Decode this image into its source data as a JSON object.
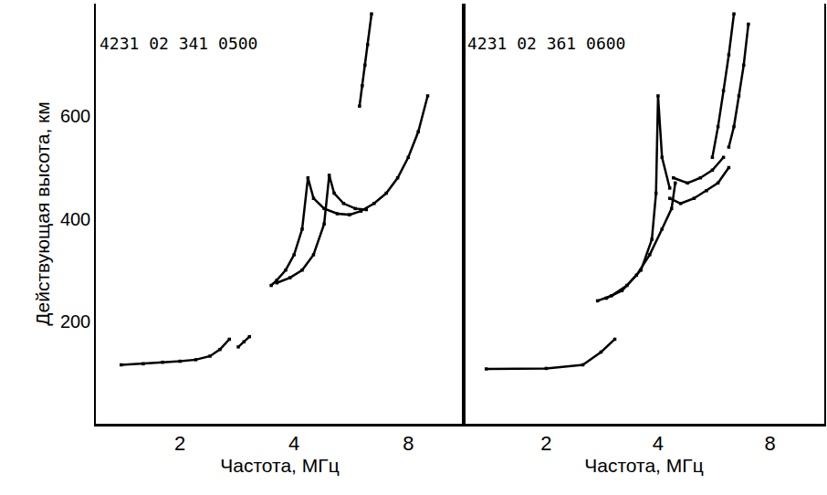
{
  "chart_data": [
    {
      "type": "scatter",
      "title": "4231 02 341 0500",
      "x_label": "Частота, МГц",
      "y_label": "Действующая высота, км",
      "log": "x",
      "xlim": [
        1.2,
        11.2
      ],
      "xticks": [
        2,
        4,
        8
      ],
      "ylim": [
        0,
        820
      ],
      "yticks": [
        200,
        400,
        600
      ],
      "color": "#000000",
      "marker": "square",
      "line_style": "solid",
      "series": [
        {
          "x": [
            1.4,
            1.6,
            1.8,
            2.0,
            2.2,
            2.4,
            2.55,
            2.7
          ],
          "y": [
            115,
            117,
            120,
            122,
            125,
            132,
            145,
            165
          ]
        },
        {
          "x": [
            2.85,
            2.95,
            3.05
          ],
          "y": [
            150,
            160,
            170
          ]
        },
        {
          "x": [
            3.48,
            3.6,
            3.8,
            4.0,
            4.2,
            4.35,
            4.5,
            4.8,
            5.2,
            5.6,
            6.0,
            6.5,
            7.0,
            7.5,
            8.0,
            8.5,
            9.0
          ],
          "y": [
            270,
            280,
            300,
            330,
            380,
            480,
            440,
            420,
            410,
            408,
            415,
            430,
            450,
            480,
            520,
            570,
            640
          ]
        },
        {
          "x": [
            3.6,
            3.9,
            4.2,
            4.5,
            4.8,
            4.95,
            5.1,
            5.4,
            5.8,
            6.2
          ],
          "y": [
            275,
            285,
            300,
            330,
            390,
            485,
            450,
            430,
            420,
            418
          ]
        },
        {
          "x": [
            5.95,
            6.05,
            6.15,
            6.25,
            6.4
          ],
          "y": [
            620,
            660,
            700,
            740,
            800
          ]
        }
      ]
    },
    {
      "type": "scatter",
      "title": "4231 02 361 0600",
      "x_label": "Частота, МГц",
      "log": "x",
      "xlim": [
        1.2,
        11.2
      ],
      "xticks": [
        2,
        4,
        8
      ],
      "ylim": [
        0,
        820
      ],
      "yticks": [
        200,
        400,
        600
      ],
      "tick_labels": "x",
      "color": "#000000",
      "marker": "square",
      "line_style": "solid",
      "series": [
        {
          "x": [
            1.38,
            2.0,
            2.51,
            2.81,
            3.06
          ],
          "y": [
            107,
            108,
            115,
            140,
            165
          ]
        },
        {
          "x": [
            2.75,
            3.0,
            3.3,
            3.6,
            3.85,
            3.95,
            4.0,
            4.1,
            4.3
          ],
          "y": [
            240,
            250,
            270,
            300,
            360,
            450,
            640,
            520,
            460
          ]
        },
        {
          "x": [
            2.9,
            3.2,
            3.5,
            3.8,
            4.1,
            4.35,
            4.45
          ],
          "y": [
            245,
            260,
            290,
            330,
            380,
            420,
            470
          ]
        },
        {
          "x": [
            4.3,
            4.6,
            5.0,
            5.4,
            5.8,
            6.2
          ],
          "y": [
            440,
            430,
            440,
            455,
            470,
            500
          ]
        },
        {
          "x": [
            4.4,
            4.8,
            5.2,
            5.6,
            6.0
          ],
          "y": [
            480,
            470,
            480,
            495,
            520
          ]
        },
        {
          "x": [
            5.6,
            5.8,
            6.0,
            6.2,
            6.4
          ],
          "y": [
            520,
            580,
            650,
            720,
            800
          ]
        },
        {
          "x": [
            6.2,
            6.4,
            6.6,
            6.8,
            7.0
          ],
          "y": [
            540,
            580,
            640,
            700,
            780
          ]
        }
      ]
    }
  ]
}
